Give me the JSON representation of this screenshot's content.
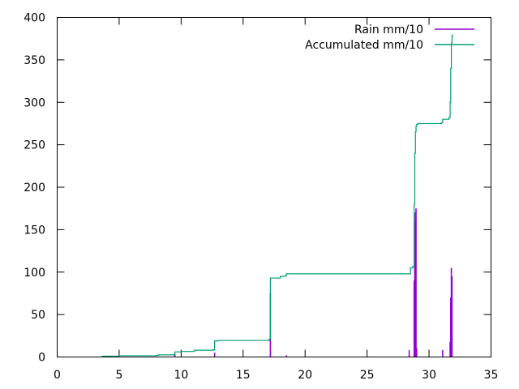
{
  "chart_data": {
    "type": "line",
    "title": "",
    "xlabel": "",
    "ylabel": "",
    "xlim": [
      0,
      35
    ],
    "ylim": [
      0,
      400
    ],
    "x_ticks": [
      "0",
      "5",
      "10",
      "15",
      "20",
      "25",
      "30",
      "35"
    ],
    "y_ticks": [
      "0",
      "50",
      "100",
      "150",
      "200",
      "250",
      "300",
      "350",
      "400"
    ],
    "grid": false,
    "legend_position": "top-right",
    "series": [
      {
        "name": "Rain mm/10",
        "style": "impulses",
        "color": "#9400d3",
        "x": [
          9.5,
          12.7,
          17.2,
          18.5,
          28.4,
          28.8,
          28.85,
          28.9,
          28.95,
          29.0,
          31.1,
          31.7,
          31.75,
          31.8,
          31.85
        ],
        "y": [
          3,
          5,
          75,
          2,
          8,
          90,
          160,
          170,
          175,
          10,
          8,
          18,
          70,
          105,
          95
        ]
      },
      {
        "name": "Accumulated mm/10",
        "style": "line",
        "color": "#009e73",
        "x": [
          3.6,
          5.0,
          7.0,
          8.0,
          8.2,
          9.4,
          9.5,
          10.0,
          11.0,
          11.1,
          12.6,
          12.7,
          13.0,
          17.1,
          17.2,
          18.0,
          18.4,
          18.5,
          25.0,
          28.4,
          28.5,
          28.7,
          28.8,
          28.85,
          28.9,
          28.95,
          29.0,
          29.1,
          29.4,
          31.0,
          31.1,
          31.6,
          31.7,
          31.75,
          31.8,
          31.85,
          31.9
        ],
        "y": [
          1,
          1.5,
          1.5,
          2,
          2.5,
          3,
          6,
          6.5,
          7,
          8,
          8.5,
          19,
          19.5,
          21,
          93,
          95,
          96,
          98,
          98,
          98,
          105,
          107,
          180,
          240,
          265,
          272,
          274,
          275,
          275,
          276,
          280,
          282,
          300,
          340,
          370,
          378,
          380
        ]
      }
    ]
  }
}
